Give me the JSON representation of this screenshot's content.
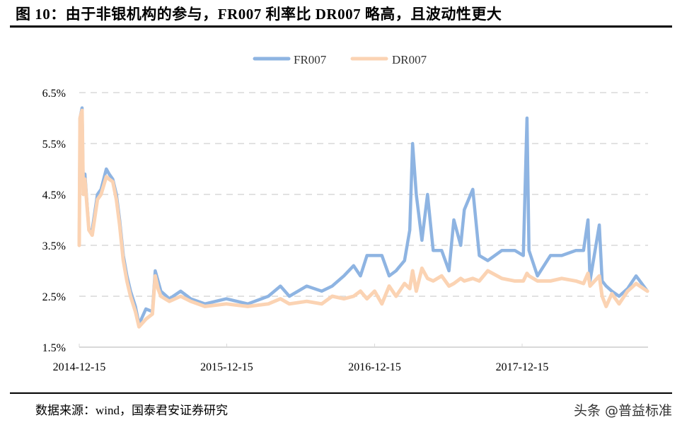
{
  "header": {
    "title": "图 10：由于非银机构的参与，FR007 利率比 DR007 略高，且波动性更大"
  },
  "footer": {
    "source": "数据来源：wind，国泰君安证券研究",
    "watermark": "头条 @普益标准"
  },
  "chart_data": {
    "type": "line",
    "title": "",
    "xlabel": "",
    "ylabel": "",
    "ylim": [
      1.5,
      6.5
    ],
    "y_ticks": [
      "1.5%",
      "2.5%",
      "3.5%",
      "4.5%",
      "5.5%",
      "6.5%"
    ],
    "x_ticks": [
      "2014-12-15",
      "2015-12-15",
      "2016-12-15",
      "2017-12-15"
    ],
    "grid": "horizontal dashed",
    "legend": "top-center",
    "colors": {
      "FR007": "#8eb4e2",
      "DR007": "#fbd3b3"
    },
    "x": [
      "2014-12-15",
      "2014-12-17",
      "2014-12-22",
      "2014-12-25",
      "2014-12-29",
      "2015-01-08",
      "2015-01-16",
      "2015-01-29",
      "2015-02-07",
      "2015-02-20",
      "2015-02-27",
      "2015-03-08",
      "2015-03-17",
      "2015-03-25",
      "2015-04-03",
      "2015-04-12",
      "2015-04-21",
      "2015-05-03",
      "2015-05-12",
      "2015-05-29",
      "2015-06-14",
      "2015-06-21",
      "2015-06-28",
      "2015-07-05",
      "2015-07-26",
      "2015-08-23",
      "2015-09-17",
      "2015-10-22",
      "2015-12-14",
      "2016-02-05",
      "2016-03-27",
      "2016-04-26",
      "2016-05-18",
      "2016-06-30",
      "2016-08-06",
      "2016-09-01",
      "2016-09-30",
      "2016-10-24",
      "2016-11-10",
      "2016-11-26",
      "2016-12-15",
      "2017-01-02",
      "2017-01-20",
      "2017-02-06",
      "2017-02-27",
      "2017-03-12",
      "2017-03-19",
      "2017-03-28",
      "2017-04-11",
      "2017-04-25",
      "2017-05-09",
      "2017-05-30",
      "2017-06-17",
      "2017-06-29",
      "2017-07-16",
      "2017-07-25",
      "2017-08-15",
      "2017-08-31",
      "2017-09-21",
      "2017-10-26",
      "2017-11-27",
      "2017-12-18",
      "2017-12-27",
      "2018-01-01",
      "2018-01-22",
      "2018-02-23",
      "2018-03-23",
      "2018-04-27",
      "2018-05-16",
      "2018-05-27",
      "2018-06-01",
      "2018-06-24",
      "2018-07-01",
      "2018-07-11",
      "2018-07-25",
      "2018-08-12",
      "2018-09-02",
      "2018-09-23",
      "2018-10-21"
    ],
    "series": [
      {
        "name": "FR007",
        "values": [
          3.5,
          6.0,
          6.2,
          4.6,
          4.9,
          3.8,
          3.8,
          4.5,
          4.6,
          5.0,
          4.9,
          4.8,
          4.5,
          4.0,
          3.3,
          2.9,
          2.6,
          2.3,
          1.95,
          2.25,
          2.2,
          3.0,
          2.8,
          2.6,
          2.45,
          2.6,
          2.45,
          2.35,
          2.45,
          2.35,
          2.5,
          2.7,
          2.5,
          2.7,
          2.6,
          2.7,
          2.9,
          3.1,
          2.9,
          3.3,
          3.3,
          3.3,
          2.9,
          3.0,
          3.2,
          3.8,
          5.5,
          4.5,
          3.6,
          4.5,
          3.4,
          3.4,
          3.0,
          4.0,
          3.5,
          4.2,
          4.6,
          3.3,
          3.2,
          3.4,
          3.4,
          3.3,
          6.0,
          3.4,
          2.9,
          3.3,
          3.3,
          3.4,
          3.4,
          4.0,
          2.8,
          3.9,
          2.8,
          2.7,
          2.6,
          2.5,
          2.65,
          2.9,
          2.6
        ]
      },
      {
        "name": "DR007",
        "values": [
          3.5,
          6.0,
          6.15,
          4.5,
          4.8,
          3.8,
          3.7,
          4.4,
          4.5,
          4.85,
          4.8,
          4.75,
          4.4,
          3.9,
          3.2,
          2.8,
          2.5,
          2.2,
          1.9,
          2.05,
          2.15,
          2.9,
          2.65,
          2.5,
          2.4,
          2.5,
          2.4,
          2.3,
          2.35,
          2.3,
          2.35,
          2.45,
          2.35,
          2.4,
          2.35,
          2.5,
          2.45,
          2.5,
          2.6,
          2.45,
          2.6,
          2.35,
          2.7,
          2.5,
          2.75,
          2.65,
          3.0,
          2.6,
          3.05,
          2.85,
          2.8,
          2.9,
          2.7,
          2.75,
          2.85,
          2.8,
          2.85,
          2.8,
          3.0,
          2.85,
          2.8,
          2.8,
          2.95,
          2.9,
          2.8,
          2.8,
          2.85,
          2.8,
          2.75,
          2.95,
          2.7,
          2.9,
          2.5,
          2.3,
          2.55,
          2.35,
          2.6,
          2.75,
          2.6
        ]
      }
    ]
  }
}
